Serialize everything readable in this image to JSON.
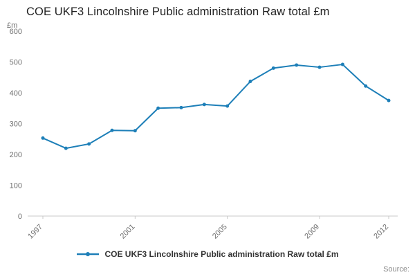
{
  "title": "COE UKF3 Lincolnshire Public administration Raw total £m",
  "y_unit_label": "£m",
  "source_label": "Source:",
  "colors": {
    "accent": "#1d7fb8",
    "axis": "#c8c8c8",
    "tick_text": "#707070",
    "title_text": "#222222"
  },
  "chart_data": {
    "type": "line",
    "title": "COE UKF3 Lincolnshire Public administration Raw total £m",
    "ylabel": "£m",
    "x": [
      1997,
      1998,
      1999,
      2000,
      2001,
      2002,
      2003,
      2004,
      2005,
      2006,
      2007,
      2008,
      2009,
      2010,
      2011,
      2012
    ],
    "series": [
      {
        "name": "COE UKF3 Lincolnshire Public administration Raw total £m",
        "values": [
          253,
          220,
          234,
          278,
          277,
          350,
          352,
          362,
          357,
          437,
          480,
          490,
          483,
          492,
          422,
          375
        ]
      }
    ],
    "ylim": [
      0,
      600
    ],
    "yticks": [
      0,
      100,
      200,
      300,
      400,
      500,
      600
    ],
    "xticks": [
      1997,
      2001,
      2005,
      2009,
      2012
    ],
    "grid": false,
    "legend_position": "bottom",
    "markers": true
  }
}
